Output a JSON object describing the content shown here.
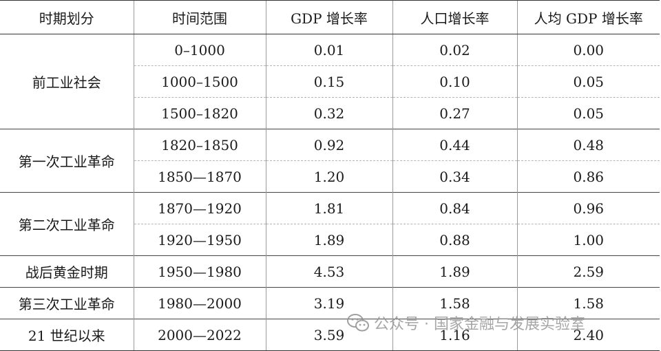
{
  "headers": [
    "时期划分",
    "时间范围",
    "GDP 增长率",
    "人口增长率",
    "人均 GDP 增长率"
  ],
  "groups": [
    {
      "name": "前工业社会",
      "rows": [
        {
          "range": "0–1000",
          "gdp": "0.01",
          "pop": "0.02",
          "pc": "0.00"
        },
        {
          "range": "1000–1500",
          "gdp": "0.15",
          "pop": "0.10",
          "pc": "0.05"
        },
        {
          "range": "1500–1820",
          "gdp": "0.32",
          "pop": "0.27",
          "pc": "0.05"
        }
      ]
    },
    {
      "name": "第一次工业革命",
      "rows": [
        {
          "range": "1820–1850",
          "gdp": "0.92",
          "pop": "0.44",
          "pc": "0.48"
        },
        {
          "range": "1850—1870",
          "gdp": "1.20",
          "pop": "0.34",
          "pc": "0.86"
        }
      ]
    },
    {
      "name": "第二次工业革命",
      "rows": [
        {
          "range": "1870—1920",
          "gdp": "1.81",
          "pop": "0.84",
          "pc": "0.96"
        },
        {
          "range": "1920—1950",
          "gdp": "1.89",
          "pop": "0.88",
          "pc": "1.00"
        }
      ]
    },
    {
      "name": "战后黄金时期",
      "rows": [
        {
          "range": "1950—1980",
          "gdp": "4.53",
          "pop": "1.89",
          "pc": "2.59"
        }
      ]
    },
    {
      "name": "第三次工业革命",
      "rows": [
        {
          "range": "1980—2000",
          "gdp": "3.19",
          "pop": "1.58",
          "pc": "1.58"
        }
      ]
    },
    {
      "name": "21 世纪以来",
      "rows": [
        {
          "range": "2000—2022",
          "gdp": "3.59",
          "pop": "1.16",
          "pc": "2.40"
        }
      ]
    }
  ],
  "watermark": {
    "text": "公众号 · 国家金融与发展实验室",
    "icon": "wechat-icon"
  }
}
